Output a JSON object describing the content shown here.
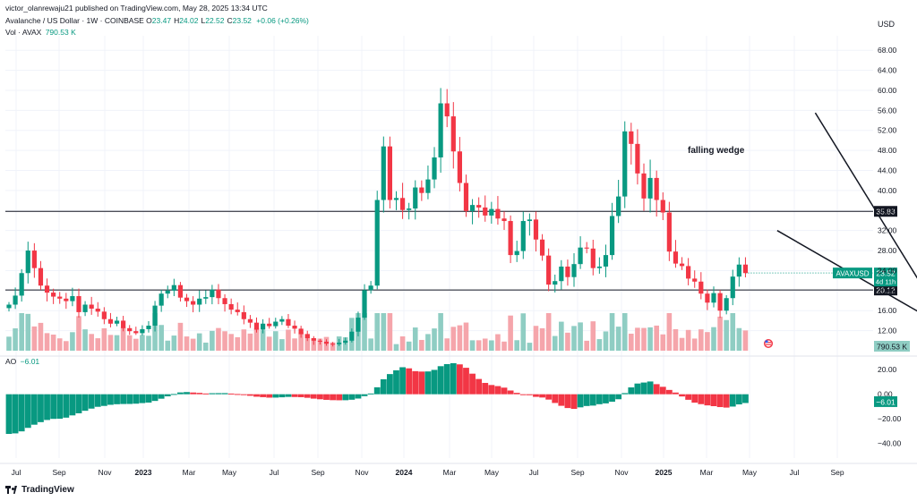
{
  "header": {
    "published": "victor_olanrewaju21 published on TradingView.com, May 28, 2025 13:34 UTC",
    "symbol": "Avalanche / US Dollar · 1W · COINBASE",
    "ohlc": [
      {
        "k": "O",
        "v": "23.47"
      },
      {
        "k": "H",
        "v": "24.02"
      },
      {
        "k": "L",
        "v": "22.52"
      },
      {
        "k": "C",
        "v": "23.52"
      }
    ],
    "change": "+0.06 (+0.26%)",
    "vol_label": "Vol · AVAX",
    "vol_value": "790.53 K",
    "ao_label": "AO",
    "ao_value": "−6.01",
    "currency": "USD",
    "logo": "TradingView"
  },
  "colors": {
    "up": "#089981",
    "down": "#f23645",
    "up_vol": "#8fcdc3",
    "down_vol": "#f5a5ab",
    "grid": "#f0f3fa",
    "text": "#131722"
  },
  "chart_data": {
    "type": "candlestick",
    "interval": "1W",
    "price_axis": {
      "ticks": [
        12,
        16,
        20,
        24,
        28,
        32,
        36,
        40,
        44,
        48,
        52,
        56,
        60,
        64,
        68
      ],
      "tick_labels": [
        "12.00",
        "16.00",
        "20.00",
        "24.00",
        "28.00",
        "32.00",
        "36.00",
        "40.00",
        "44.00",
        "48.00",
        "52.00",
        "56.00",
        "60.00",
        "64.00",
        "68.00"
      ],
      "range": [
        8,
        70
      ]
    },
    "time_axis": {
      "labels": [
        "Jul",
        "Sep",
        "Nov",
        "2023",
        "Mar",
        "May",
        "Jul",
        "Sep",
        "Nov",
        "2024",
        "Mar",
        "May",
        "Jul",
        "Sep",
        "Nov",
        "2025",
        "Mar",
        "May",
        "Jul",
        "Sep"
      ],
      "bold": [
        "2023",
        "2024",
        "2025"
      ]
    },
    "horizontal_lines": [
      {
        "price": 35.83,
        "label": "35.83"
      },
      {
        "price": 20.12,
        "label": "20.12"
      }
    ],
    "last_price": {
      "price": 23.52,
      "label": "AVAXUSD",
      "value": "23.52",
      "countdown": "4d 11h"
    },
    "volume_label": "790.53 K",
    "annotation": {
      "text": "falling wedge"
    },
    "wedge": {
      "upper": [
        {
          "x": "2024-12-02",
          "y": 55.5
        },
        {
          "x": "2025-04-14",
          "y": 16.5
        }
      ],
      "lower": [
        {
          "x": "2024-10-21",
          "y": 32.0
        },
        {
          "x": "2025-04-07",
          "y": 14.5
        }
      ]
    },
    "ao": {
      "ticks": [
        20,
        0,
        -20,
        -40
      ],
      "tick_labels": [
        "20.00",
        "0.00",
        "−20.00",
        "−40.00"
      ],
      "range": [
        -52,
        26
      ],
      "last_label": "−6.01"
    },
    "closes": [
      17.2,
      19.0,
      23.5,
      28.0,
      24.5,
      21.0,
      19.6,
      18.8,
      18.4,
      17.9,
      18.9,
      15.7,
      17.2,
      16.4,
      15.8,
      14.3,
      13.4,
      14.0,
      12.5,
      11.9,
      11.5,
      12.3,
      13.0,
      17.0,
      19.4,
      20.0,
      21.1,
      18.6,
      17.9,
      17.2,
      18.4,
      18.7,
      20.2,
      18.5,
      17.3,
      16.2,
      15.7,
      14.3,
      13.6,
      12.2,
      13.4,
      12.9,
      13.8,
      14.3,
      13.0,
      12.4,
      11.3,
      10.5,
      10.0,
      9.8,
      9.4,
      9.3,
      9.6,
      10.0,
      11.8,
      14.6,
      20.1,
      21.0,
      38.1,
      48.8,
      38.1,
      38.5,
      36.1,
      36.4,
      40.6,
      39.5,
      42.2,
      46.6,
      57.4,
      54.8,
      47.8,
      41.5,
      35.9,
      37.1,
      36.6,
      35.0,
      36.3,
      34.4,
      33.9,
      27.1,
      27.9,
      33.9,
      34.2,
      30.2,
      27.0,
      21.2,
      21.9,
      24.8,
      22.7,
      25.3,
      28.6,
      28.4,
      24.5,
      24.8,
      27.1,
      34.9,
      38.8,
      51.8,
      49.3,
      43.4,
      38.4,
      42.5,
      38.1,
      35.6,
      27.8,
      25.4,
      24.9,
      22.4,
      21.8,
      19.4,
      17.6,
      19.5,
      16.0,
      18.5,
      22.8,
      25.2,
      23.5
    ]
  }
}
